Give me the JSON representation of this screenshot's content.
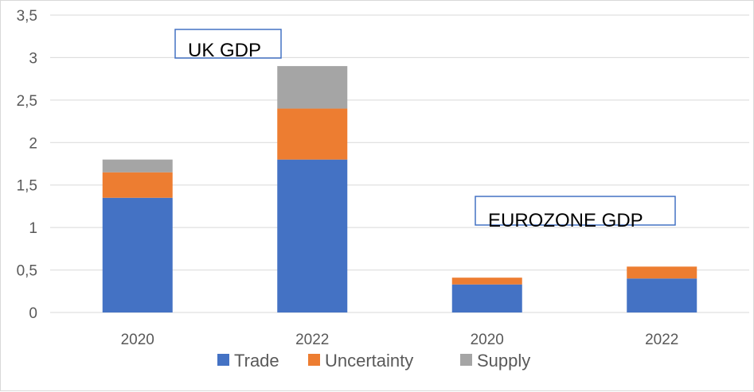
{
  "chart_data": {
    "type": "bar",
    "stacked": true,
    "categories": [
      "2020",
      "2022",
      "2020",
      "2022"
    ],
    "series": [
      {
        "name": "Trade",
        "color": "#4472c4",
        "values": [
          1.35,
          1.8,
          0.33,
          0.4
        ]
      },
      {
        "name": "Uncertainty",
        "color": "#ed7d31",
        "values": [
          0.3,
          0.6,
          0.08,
          0.14
        ]
      },
      {
        "name": "Supply",
        "color": "#a5a5a5",
        "values": [
          0.15,
          0.5,
          0,
          0
        ]
      }
    ],
    "ylim": [
      0,
      3.5
    ],
    "yticks": [
      "0",
      "0,5",
      "1",
      "1,5",
      "2",
      "2,5",
      "3",
      "3,5"
    ],
    "ytick_values": [
      0,
      0.5,
      1,
      1.5,
      2,
      2.5,
      3,
      3.5
    ],
    "grid": true,
    "legend_position": "bottom",
    "annotations": [
      "UK GDP",
      "EUROZONE GDP"
    ],
    "annotation_border_color": "#4472c4"
  }
}
